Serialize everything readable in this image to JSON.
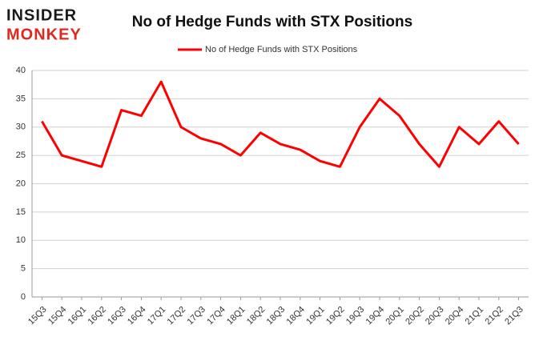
{
  "logo": {
    "line1": "INSIDER",
    "line2": "MONKEY"
  },
  "chart_data": {
    "type": "line",
    "title": "No of Hedge Funds with STX Positions",
    "categories": [
      "15Q3",
      "15Q4",
      "16Q1",
      "16Q2",
      "16Q3",
      "16Q4",
      "17Q1",
      "17Q2",
      "17Q3",
      "17Q4",
      "18Q1",
      "18Q2",
      "18Q3",
      "18Q4",
      "19Q1",
      "19Q2",
      "19Q3",
      "19Q4",
      "20Q1",
      "20Q2",
      "20Q3",
      "20Q4",
      "21Q1",
      "21Q2",
      "21Q3"
    ],
    "series": [
      {
        "name": "No of Hedge Funds with STX Positions",
        "color": "#ff0000",
        "values": [
          31,
          25,
          24,
          23,
          33,
          32,
          38,
          30,
          28,
          27,
          25,
          29,
          27,
          26,
          24,
          23,
          30,
          35,
          32,
          27,
          23,
          30,
          27,
          31,
          27
        ]
      }
    ],
    "ylim": [
      0,
      40
    ],
    "yticks": [
      0,
      5,
      10,
      15,
      20,
      25,
      30,
      35,
      40
    ],
    "grid": true,
    "legend": "top"
  }
}
